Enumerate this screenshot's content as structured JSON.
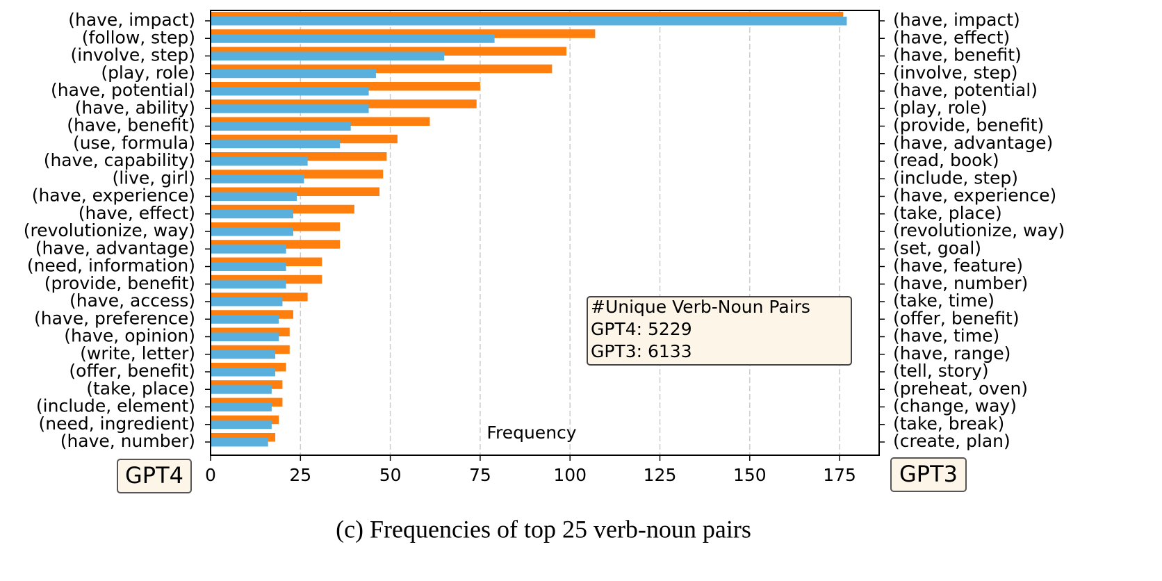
{
  "chart_data": {
    "type": "bar",
    "orientation": "horizontal",
    "categories": [
      "(have, impact)",
      "(follow, step)",
      "(involve, step)",
      "(play, role)",
      "(have, potential)",
      "(have, ability)",
      "(have, benefit)",
      "(use, formula)",
      "(have, capability)",
      "(live, girl)",
      "(have, experience)",
      "(have, effect)",
      "(revolutionize, way)",
      "(have, advantage)",
      "(need, information)",
      "(provide, benefit)",
      "(have, access)",
      "(have, preference)",
      "(have, opinion)",
      "(write, letter)",
      "(offer, benefit)",
      "(take, place)",
      "(include, element)",
      "(need, ingredient)",
      "(have, number)"
    ],
    "categories2": [
      "(have, impact)",
      "(have, effect)",
      "(have, benefit)",
      "(involve, step)",
      "(have, potential)",
      "(play, role)",
      "(provide, benefit)",
      "(have, advantage)",
      "(read, book)",
      "(include, step)",
      "(have, experience)",
      "(take, place)",
      "(revolutionize, way)",
      "(set, goal)",
      "(have, feature)",
      "(have, number)",
      "(take, time)",
      "(offer, benefit)",
      "(have, time)",
      "(have, range)",
      "(tell, story)",
      "(preheat, oven)",
      "(change, way)",
      "(take, break)",
      "(create, plan)"
    ],
    "series": [
      {
        "name": "GPT4",
        "color": "#ff7f0e",
        "values": [
          176,
          107,
          99,
          95,
          75,
          74,
          61,
          52,
          49,
          48,
          47,
          40,
          36,
          36,
          31,
          31,
          27,
          23,
          22,
          22,
          21,
          20,
          20,
          19,
          18
        ]
      },
      {
        "name": "GPT3",
        "color": "#5ab0dc",
        "axis": "y2",
        "values": [
          177,
          79,
          65,
          46,
          44,
          44,
          39,
          36,
          27,
          26,
          24,
          23,
          23,
          21,
          21,
          21,
          20,
          19,
          19,
          18,
          18,
          17,
          17,
          17,
          16
        ]
      }
    ],
    "xlabel": "Frequency",
    "xlim": [
      0,
      186
    ],
    "xticks": [
      0,
      25,
      50,
      75,
      100,
      125,
      150,
      175
    ],
    "grid": true,
    "annotation": [
      "#Unique Verb-Noun Pairs",
      "GPT4: 5229",
      "GPT3: 6133"
    ],
    "caption": "(c) Frequencies of top 25 verb-noun pairs"
  }
}
